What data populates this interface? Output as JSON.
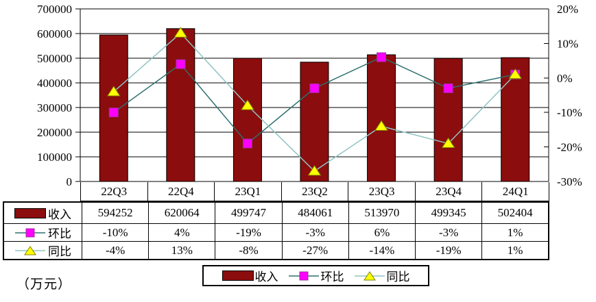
{
  "unit_label": "（万元）",
  "colors": {
    "background": "#ffffff",
    "axis": "#000000",
    "text": "#000000",
    "bar_fill": "#8b0d0d",
    "bar_border": "#000000",
    "qoq_line": "#2f6f6f",
    "qoq_marker_fill": "#ff00ff",
    "qoq_marker_border": "#99339b",
    "yoy_line": "#8fc3c3",
    "yoy_marker_fill": "#ffff00",
    "yoy_marker_border": "#7f7f00"
  },
  "chart_data": {
    "type": "combo-bar-line",
    "title": "",
    "categories": [
      "22Q3",
      "22Q4",
      "23Q1",
      "23Q2",
      "23Q3",
      "23Q4",
      "24Q1"
    ],
    "series": [
      {
        "name": "收入",
        "kind": "bar",
        "axis": "left",
        "values": [
          594252,
          620064,
          499747,
          484061,
          513970,
          499345,
          502404
        ]
      },
      {
        "name": "环比",
        "kind": "line",
        "axis": "right",
        "marker": "square",
        "values": [
          -10,
          4,
          -19,
          -3,
          6,
          -3,
          1
        ],
        "labels": [
          "-10%",
          "4%",
          "-19%",
          "-3%",
          "6%",
          "-3%",
          "1%"
        ]
      },
      {
        "name": "同比",
        "kind": "line",
        "axis": "right",
        "marker": "triangle",
        "values": [
          -4,
          13,
          -8,
          -27,
          -14,
          -19,
          1
        ],
        "labels": [
          "-4%",
          "13%",
          "-8%",
          "-27%",
          "-14%",
          "-19%",
          "1%"
        ]
      }
    ],
    "left_axis": {
      "min": 0,
      "max": 700000,
      "step": 100000,
      "labels": [
        "700000",
        "600000",
        "500000",
        "400000",
        "300000",
        "200000",
        "100000",
        "0"
      ]
    },
    "right_axis": {
      "min": -30,
      "max": 20,
      "step": 10,
      "labels": [
        "20%",
        "10%",
        "0%",
        "-10%",
        "-20%",
        "-30%"
      ]
    },
    "grid": "horizontal",
    "legend_position": "bottom"
  },
  "table": {
    "category_row": [
      "22Q3",
      "22Q4",
      "23Q1",
      "23Q2",
      "23Q3",
      "23Q4",
      "24Q1"
    ],
    "rows": [
      {
        "key": "revenue",
        "label": "收入",
        "cells": [
          "594252",
          "620064",
          "499747",
          "484061",
          "513970",
          "499345",
          "502404"
        ]
      },
      {
        "key": "qoq",
        "label": "环比",
        "cells": [
          "-10%",
          "4%",
          "-19%",
          "-3%",
          "6%",
          "-3%",
          "1%"
        ]
      },
      {
        "key": "yoy",
        "label": "同比",
        "cells": [
          "-4%",
          "13%",
          "-8%",
          "-27%",
          "-14%",
          "-19%",
          "1%"
        ]
      }
    ]
  },
  "legend": {
    "items": [
      {
        "key": "revenue",
        "label": "收入"
      },
      {
        "key": "qoq",
        "label": "环比"
      },
      {
        "key": "yoy",
        "label": "同比"
      }
    ]
  }
}
